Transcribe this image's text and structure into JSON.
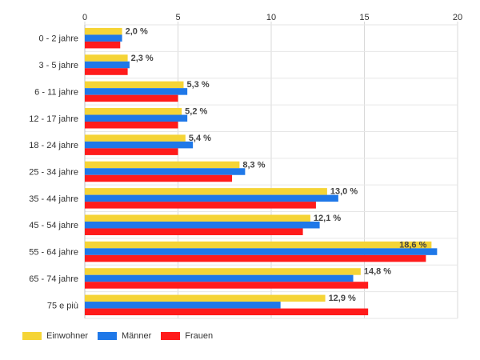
{
  "chart_data": {
    "type": "bar",
    "orientation": "horizontal",
    "categories": [
      "0 - 2 jahre",
      "3 - 5 jahre",
      "6 - 11 jahre",
      "12 - 17 jahre",
      "18 - 24 jahre",
      "25 - 34 jahre",
      "35 - 44 jahre",
      "45 - 54 jahre",
      "55 - 64 jahre",
      "65 - 74 jahre",
      "75 e più"
    ],
    "series": [
      {
        "name": "Einwohner",
        "color": "#f5d436",
        "values": [
          2.0,
          2.3,
          5.3,
          5.2,
          5.4,
          8.3,
          13.0,
          12.1,
          18.6,
          14.8,
          12.9
        ]
      },
      {
        "name": "Männer",
        "color": "#1f78e8",
        "values": [
          2.0,
          2.4,
          5.5,
          5.5,
          5.8,
          8.6,
          13.6,
          12.6,
          18.9,
          14.4,
          10.5
        ]
      },
      {
        "name": "Frauen",
        "color": "#ff1b1b",
        "values": [
          1.9,
          2.3,
          5.0,
          5.0,
          5.0,
          7.9,
          12.4,
          11.7,
          18.3,
          15.2,
          15.2
        ]
      }
    ],
    "data_labels": [
      "2,0 %",
      "2,3 %",
      "5,3 %",
      "5,2 %",
      "5,4 %",
      "8,3 %",
      "13,0 %",
      "12,1 %",
      "18,6 %",
      "14,8 %",
      "12,9 %"
    ],
    "xlim": [
      0,
      20
    ],
    "x_ticks": [
      "0",
      "5",
      "10",
      "15",
      "20"
    ],
    "x_tick_values": [
      0,
      5,
      10,
      15,
      20
    ],
    "grid": true,
    "legend_position": "bottom-left",
    "title": "",
    "xlabel": "",
    "ylabel": ""
  }
}
